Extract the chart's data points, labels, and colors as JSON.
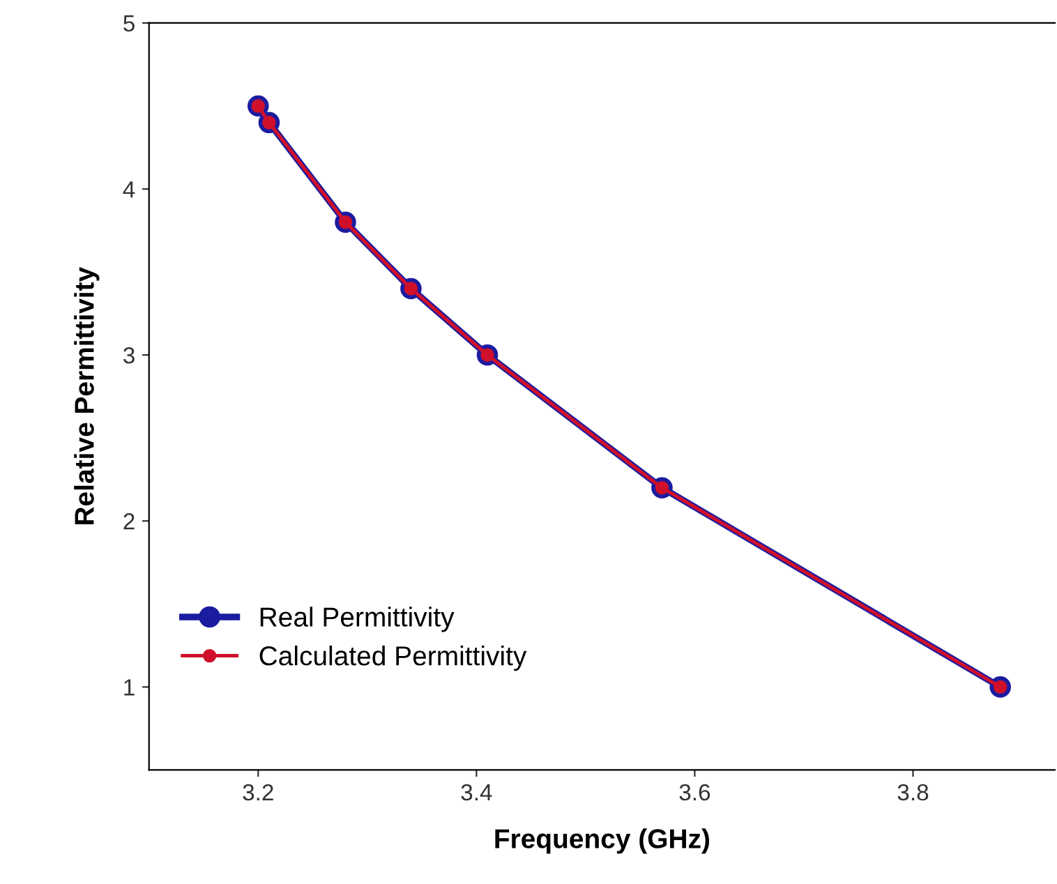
{
  "chart_data": {
    "type": "line",
    "xlabel": "Frequency (GHz)",
    "ylabel": "Relative Permittivity",
    "x": [
      3.2,
      3.21,
      3.28,
      3.34,
      3.41,
      3.57,
      3.88
    ],
    "series": [
      {
        "name": "Real Permittivity",
        "color": "#1c1ca0",
        "values": [
          4.5,
          4.4,
          3.8,
          3.4,
          3.0,
          2.2,
          1.0
        ]
      },
      {
        "name": "Calculated Permittivity",
        "color": "#d0102a",
        "values": [
          4.5,
          4.4,
          3.8,
          3.4,
          3.0,
          2.2,
          1.0
        ]
      }
    ],
    "xlim": [
      3.1,
      3.93
    ],
    "xticks": [
      3.2,
      3.4,
      3.6,
      3.8
    ],
    "ylim": [
      0.5,
      5
    ],
    "yticks": [
      1,
      2,
      3,
      4,
      5
    ],
    "grid": false,
    "legend": "bottom left",
    "marker": "circle",
    "line_style": "solid"
  }
}
